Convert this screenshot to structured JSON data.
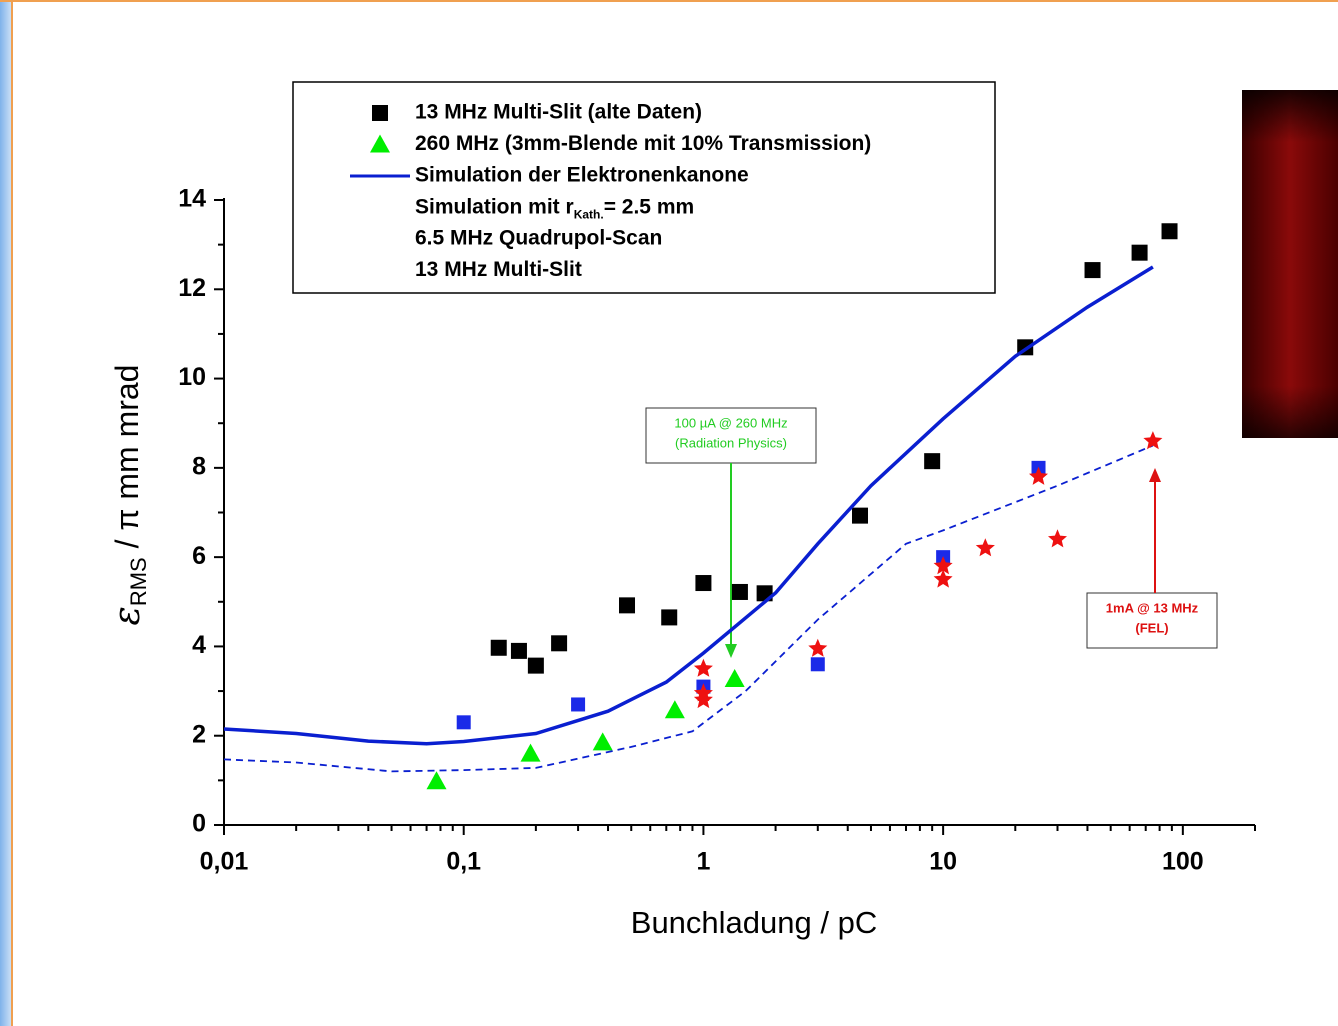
{
  "chart_data": {
    "type": "scatter",
    "xlabel": "Bunchladung / pC",
    "ylabel": [
      "ε",
      "RMS",
      " / π mm mrad"
    ],
    "xscale": "log",
    "xlim": [
      0.01,
      200
    ],
    "ylim": [
      0,
      14
    ],
    "xticks": [
      {
        "value": 0.01,
        "label": "0,01"
      },
      {
        "value": 0.1,
        "label": "0,1"
      },
      1,
      10,
      100
    ],
    "xminorticks": [
      0.02,
      0.03,
      0.04,
      0.05,
      0.06,
      0.07,
      0.08,
      0.09,
      0.2,
      0.3,
      0.4,
      0.5,
      0.6,
      0.7,
      0.8,
      0.9,
      2,
      3,
      4,
      5,
      6,
      7,
      8,
      9,
      20,
      30,
      40,
      50,
      60,
      70,
      80,
      90,
      200
    ],
    "yticks": [
      0,
      2,
      4,
      6,
      8,
      10,
      12,
      14
    ],
    "yminorticks": [
      1,
      3,
      5,
      7,
      9,
      11,
      13
    ],
    "series": [
      {
        "name": "13 MHz Multi-Slit (alte Daten)",
        "marker": "square",
        "color": "#000000",
        "legend_symbol": true,
        "x": [
          0.14,
          0.17,
          0.2,
          0.25,
          0.48,
          0.72,
          1.0,
          1.42,
          1.8,
          4.5,
          9,
          22,
          42,
          66,
          88
        ],
        "values": [
          3.97,
          3.9,
          3.57,
          4.07,
          4.92,
          4.65,
          5.42,
          5.22,
          5.19,
          6.93,
          8.15,
          10.7,
          12.43,
          12.82,
          13.3
        ]
      },
      {
        "name": "260 MHz  (3mm-Blende mit 10% Transmission)",
        "marker": "triangle",
        "color": "#00ee00",
        "legend_symbol": true,
        "x": [
          0.077,
          0.19,
          0.38,
          0.76,
          1.35
        ],
        "values": [
          0.98,
          1.6,
          1.85,
          2.57,
          3.27
        ]
      },
      {
        "name": "Simulation der Elektronenkanone",
        "marker": "line",
        "color": "#0a1fd0",
        "legend_symbol": true,
        "x": [
          0.01,
          0.02,
          0.04,
          0.07,
          0.1,
          0.2,
          0.4,
          0.7,
          1,
          2,
          3,
          5,
          10,
          20,
          40,
          75
        ],
        "values": [
          2.15,
          2.05,
          1.88,
          1.82,
          1.87,
          2.05,
          2.55,
          3.2,
          3.85,
          5.2,
          6.3,
          7.6,
          9.1,
          10.5,
          11.6,
          12.5
        ]
      },
      {
        "name": [
          "Simulation mit r",
          "Kath.",
          "= 2.5 mm"
        ],
        "marker": "dashed",
        "color": "#0a1fd0",
        "legend_symbol": false,
        "x": [
          0.01,
          0.02,
          0.05,
          0.1,
          0.2,
          0.5,
          0.9,
          1.5,
          3,
          7,
          10,
          30,
          75
        ],
        "values": [
          1.47,
          1.4,
          1.2,
          1.23,
          1.28,
          1.75,
          2.1,
          3.0,
          4.6,
          6.3,
          6.6,
          7.6,
          8.5
        ]
      },
      {
        "name": "6.5 MHz Quadrupol-Scan",
        "marker": "square-small",
        "color": "#1a2ae8",
        "legend_symbol": false,
        "x": [
          0.1,
          0.3,
          1,
          3,
          10,
          25
        ],
        "values": [
          2.3,
          2.7,
          3.1,
          3.6,
          6.0,
          8.0
        ]
      },
      {
        "name": "13 MHz Multi-Slit",
        "marker": "star",
        "color": "#ee1111",
        "legend_symbol": false,
        "x": [
          1,
          1,
          1,
          3,
          10,
          10,
          15,
          25,
          30,
          75
        ],
        "values": [
          3.5,
          2.95,
          2.8,
          3.95,
          5.8,
          5.5,
          6.2,
          7.8,
          6.4,
          8.6
        ]
      }
    ],
    "annotations": [
      {
        "lines": [
          "100 µA @ 260 MHz",
          "(Radiation Physics)"
        ],
        "color": "#22cc22"
      },
      {
        "lines": [
          "1mA @ 13 MHz",
          "(FEL)"
        ],
        "color": "#dd1111"
      }
    ]
  }
}
